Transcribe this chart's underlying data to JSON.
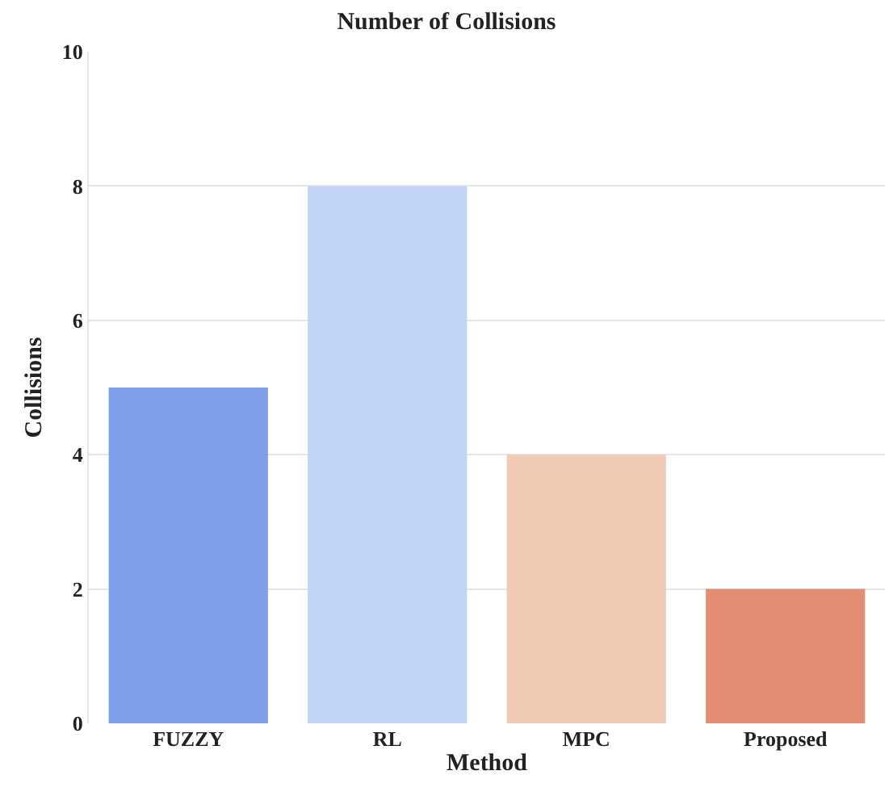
{
  "chart_data": {
    "type": "bar",
    "title": "Number of Collisions",
    "xlabel": "Method",
    "ylabel": "Collisions",
    "categories": [
      "FUZZY",
      "RL",
      "MPC",
      "Proposed"
    ],
    "values": [
      5,
      8,
      4,
      2
    ],
    "colors": [
      "#7f9fe9",
      "#c0d4f5",
      "#f0cab5",
      "#e28e72"
    ],
    "ylim": [
      0,
      10
    ],
    "yticks": [
      0,
      2,
      4,
      6,
      8,
      10
    ],
    "grid": "y"
  }
}
